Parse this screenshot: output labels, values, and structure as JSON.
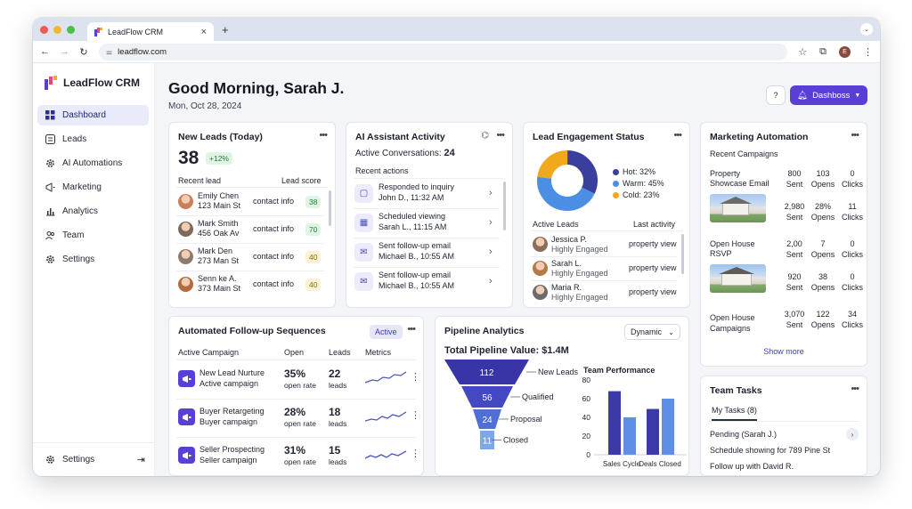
{
  "browser": {
    "tab_title": "LeadFlow CRM",
    "tab_close": "×",
    "new_tab": "+",
    "url": "leadflow.com",
    "profile_initial": "E"
  },
  "sidebar": {
    "brand": "LeadFlow CRM",
    "items": [
      {
        "label": "Dashboard",
        "icon": "grid-icon"
      },
      {
        "label": "Leads",
        "icon": "list-icon"
      },
      {
        "label": "AI Automations",
        "icon": "gear-icon"
      },
      {
        "label": "Marketing",
        "icon": "megaphone-icon"
      },
      {
        "label": "Analytics",
        "icon": "bar-chart-icon"
      },
      {
        "label": "Team",
        "icon": "people-icon"
      },
      {
        "label": "Settings",
        "icon": "gear-icon"
      }
    ],
    "bottom_settings": "Settings"
  },
  "header": {
    "greeting": "Good Morning, Sarah J.",
    "date": "Mon, Oct 28, 2024",
    "help": "?",
    "dashboard_button": "Dashboss"
  },
  "new_leads": {
    "title": "New Leads (Today)",
    "count": "38",
    "change": "+12%",
    "col_recent": "Recent lead",
    "col_score": "Lead score",
    "rows": [
      {
        "name": "Emily Chen",
        "address": "123 Main St",
        "contact": "contact info",
        "score": "38",
        "tone": "green"
      },
      {
        "name": "Mark Smith",
        "address": "456 Oak Av",
        "contact": "contact info",
        "score": "70",
        "tone": "green"
      },
      {
        "name": "Mark Den",
        "address": "273 Man St",
        "contact": "contact info",
        "score": "40",
        "tone": "yellow"
      },
      {
        "name": "Senn ke A.",
        "address": "373 Main St",
        "contact": "contact info",
        "score": "40",
        "tone": "yellow"
      }
    ]
  },
  "ai_assistant": {
    "title": "AI Assistant Activity",
    "active_label": "Active Conversations:",
    "active_count": "24",
    "recent_actions": "Recent actions",
    "actions": [
      {
        "title": "Responded to inquiry",
        "detail": "John D., 11:32 AM",
        "icon": "chat-icon"
      },
      {
        "title": "Scheduled viewing",
        "detail": "Sarah L., 11:15 AM",
        "icon": "calendar-icon"
      },
      {
        "title": "Sent follow-up email",
        "detail": "Michael B., 10:55 AM",
        "icon": "mail-icon"
      },
      {
        "title": "Sent follow-up email",
        "detail": "Michael B., 10:55 AM",
        "icon": "mail-icon"
      }
    ]
  },
  "engagement": {
    "title": "Lead Engagement Status",
    "legend": [
      {
        "label": "Hot: 32%",
        "value": 32,
        "color": "#3a3f9e"
      },
      {
        "label": "Warm: 45%",
        "value": 45,
        "color": "#4a8fe3"
      },
      {
        "label": "Cold: 23%",
        "value": 23,
        "color": "#f2a81d"
      }
    ],
    "col_active": "Active Leads",
    "col_last": "Last activity",
    "rows": [
      {
        "name": "Jessica P.",
        "status": "Highly Engaged",
        "activity": "property view"
      },
      {
        "name": "Sarah L.",
        "status": "Highly Engaged",
        "activity": "property view"
      },
      {
        "name": "Maria R.",
        "status": "Highly Engaged",
        "activity": "property view"
      }
    ]
  },
  "marketing": {
    "title": "Marketing Automation",
    "recent": "Recent Campaigns",
    "campaigns": [
      {
        "name": "Property Showcase Email",
        "stats": [
          {
            "value": "800",
            "label": "Sent"
          },
          {
            "value": "103",
            "label": "Opens"
          },
          {
            "value": "0",
            "label": "Clicks"
          },
          {
            "value": "2,980",
            "label": "Sent"
          },
          {
            "value": "28%",
            "label": "Opens"
          },
          {
            "value": "11",
            "label": "Clicks"
          }
        ]
      },
      {
        "name": "Open House RSVP",
        "stats": [
          {
            "value": "2,00",
            "label": "Sent"
          },
          {
            "value": "7",
            "label": "Opens"
          },
          {
            "value": "0",
            "label": "Clicks"
          },
          {
            "value": "920",
            "label": "Sent"
          },
          {
            "value": "38",
            "label": "Opens"
          },
          {
            "value": "0",
            "label": "Clicks"
          }
        ]
      },
      {
        "name": "Open House Campaigns",
        "stats": [
          {
            "value": "3,070",
            "label": "Sent"
          },
          {
            "value": "122",
            "label": "Opens"
          },
          {
            "value": "34",
            "label": "Clicks"
          }
        ]
      }
    ],
    "show_more": "Show more"
  },
  "followups": {
    "title": "Automated Follow-up Sequences",
    "status": "Active",
    "cols": [
      "Active Campaign",
      "Open",
      "Leads",
      "Metrics"
    ],
    "rows": [
      {
        "name": "New Lead Nurture",
        "sub": "Active campaign",
        "open": "35%",
        "open_label": "open rate",
        "leads": "22",
        "leads_label": "leads"
      },
      {
        "name": "Buyer Retargeting",
        "sub": "Buyer campaign",
        "open": "28%",
        "open_label": "open rate",
        "leads": "18",
        "leads_label": "leads"
      },
      {
        "name": "Seller Prospecting",
        "sub": "Seller campaign",
        "open": "31%",
        "open_label": "open rate",
        "leads": "15",
        "leads_label": "leads"
      }
    ]
  },
  "pipeline": {
    "title": "Pipeline Analytics",
    "select": "Dynamic",
    "total": "Total Pipeline Value: $1.4M",
    "funnel": [
      {
        "value": "112",
        "label": "New Leads"
      },
      {
        "value": "56",
        "label": "Qualified"
      },
      {
        "value": "24",
        "label": "Proposal"
      },
      {
        "value": "11",
        "label": "Closed"
      }
    ],
    "team_title": "Team Performance"
  },
  "chart_data": {
    "type": "bar",
    "title": "Team Performance",
    "categories": [
      "Sales Cycle",
      "Deals Closed"
    ],
    "series": [
      {
        "values": [
          68,
          49
        ],
        "color": "#3b3aa8"
      },
      {
        "values": [
          40,
          60
        ],
        "color": "#5f8ee8"
      }
    ],
    "ylim": [
      0,
      80
    ],
    "yticks": [
      "0",
      "20",
      "40",
      "60",
      "80"
    ]
  },
  "team_tasks": {
    "title": "Team Tasks",
    "tab": "My Tasks (8)",
    "pending": "Pending (Sarah J.)",
    "task1": "Schedule showing for 789 Pine St",
    "task2": "Follow up with David R."
  }
}
